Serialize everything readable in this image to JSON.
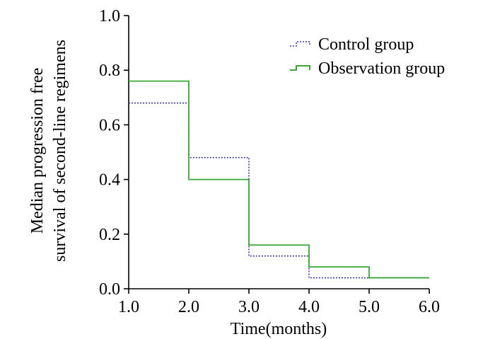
{
  "chart_data": {
    "type": "line",
    "subtype": "step",
    "title": "",
    "xlabel": "Time(months)",
    "ylabel_line1": "Median progression free",
    "ylabel_line2": "survival of second-line regimens",
    "xlim": [
      1.0,
      6.0
    ],
    "ylim": [
      0.0,
      1.0
    ],
    "x_ticks": [
      1.0,
      2.0,
      3.0,
      4.0,
      5.0,
      6.0
    ],
    "x_tick_labels": [
      "1.0",
      "2.0",
      "3.0",
      "4.0",
      "5.0",
      "6.0"
    ],
    "y_ticks": [
      0.0,
      0.2,
      0.4,
      0.6,
      0.8,
      1.0
    ],
    "y_tick_labels": [
      "0.0",
      "0.2",
      "0.4",
      "0.6",
      "0.8",
      "1.0"
    ],
    "grid": false,
    "legend_position": "top-right",
    "series": [
      {
        "name": "Control group",
        "color": "#3b3b9e",
        "style": "dotted",
        "x": [
          1.0,
          2.0,
          3.0,
          4.0,
          5.0,
          6.0
        ],
        "values": [
          0.68,
          0.48,
          0.12,
          0.04,
          0.04,
          0.04
        ]
      },
      {
        "name": "Observation group",
        "color": "#3aa63a",
        "style": "solid",
        "x": [
          1.0,
          2.0,
          3.0,
          4.0,
          5.0,
          6.0
        ],
        "values": [
          0.76,
          0.4,
          0.16,
          0.08,
          0.04,
          0.04
        ]
      }
    ]
  }
}
